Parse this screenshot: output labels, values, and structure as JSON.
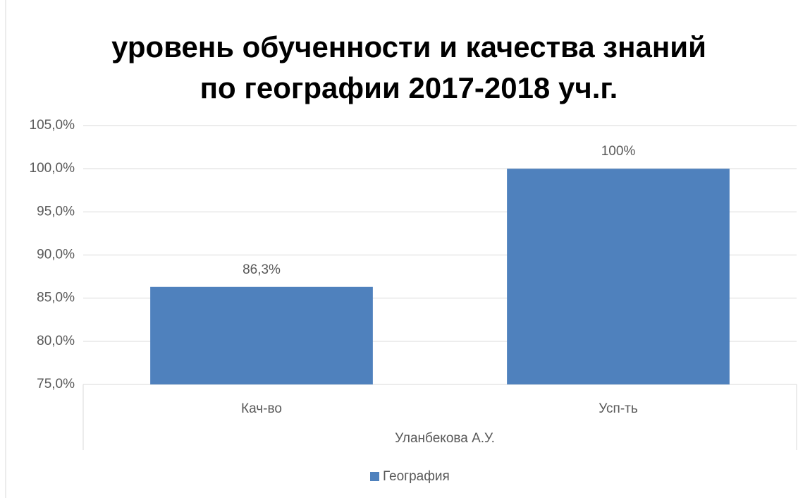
{
  "chart_data": {
    "type": "bar",
    "title": [
      "уровень обученности и качества знаний",
      "по географии 2017-2018 уч.г."
    ],
    "categories": [
      "Кач-во",
      "Усп-ть"
    ],
    "group_label": "Уланбекова А.У.",
    "series": [
      {
        "name": "География",
        "color": "#4f81bd",
        "values": [
          86.3,
          100
        ],
        "value_labels": [
          "86,3%",
          "100%"
        ]
      }
    ],
    "ylim": [
      75,
      105
    ],
    "yticks": [
      {
        "value": 75,
        "label": "75,0%"
      },
      {
        "value": 80,
        "label": "80,0%"
      },
      {
        "value": 85,
        "label": "85,0%"
      },
      {
        "value": 90,
        "label": "90,0%"
      },
      {
        "value": 95,
        "label": "95,0%"
      },
      {
        "value": 100,
        "label": "100,0%"
      },
      {
        "value": 105,
        "label": "105,0%"
      }
    ],
    "grid": true,
    "legend": "bottom"
  }
}
